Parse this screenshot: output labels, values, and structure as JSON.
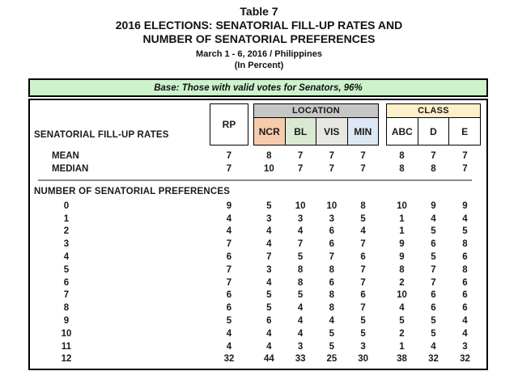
{
  "page": {
    "table_label": "Table 7",
    "title_line1": "2016 ELECTIONS: SENATORIAL FILL-UP RATES AND",
    "title_line2": "NUMBER OF SENATORIAL PREFERENCES",
    "subtitle": "March 1 - 6, 2016 / Philippines",
    "unit_note": "(In Percent)"
  },
  "banner": {
    "text": "Base: Those with valid votes for Senators, 96%"
  },
  "colors": {
    "banner_bg": "#CDF3CD",
    "location_header_bg": "#C6C6C6",
    "ncr_bg": "#F8CBAD",
    "bl_bg": "#DAE9D2",
    "vis_bg": "#E8E7E4",
    "min_bg": "#DCE9F5",
    "class_header_bg": "#FCEFC9",
    "divider": "#8A8A8A"
  },
  "table": {
    "section1_header": "SENATORIAL FILL-UP RATES",
    "rp_label": "RP",
    "groups": [
      {
        "label": "LOCATION",
        "columns": [
          "NCR",
          "BL",
          "VIS",
          "MIN"
        ]
      },
      {
        "label": "CLASS",
        "columns": [
          "ABC",
          "D",
          "E"
        ]
      }
    ],
    "fill_up_rows": [
      {
        "label": "MEAN",
        "values": [
          7,
          8,
          7,
          7,
          7,
          8,
          7,
          7
        ]
      },
      {
        "label": "MEDIAN",
        "values": [
          7,
          10,
          7,
          7,
          7,
          8,
          8,
          7
        ]
      }
    ],
    "section2_header": "NUMBER OF SENATORIAL PREFERENCES",
    "preference_rows": [
      {
        "label": "0",
        "values": [
          9,
          5,
          10,
          10,
          8,
          10,
          9,
          9
        ]
      },
      {
        "label": "1",
        "values": [
          4,
          3,
          3,
          3,
          5,
          1,
          4,
          4
        ]
      },
      {
        "label": "2",
        "values": [
          4,
          4,
          4,
          6,
          4,
          1,
          5,
          5
        ]
      },
      {
        "label": "3",
        "values": [
          7,
          4,
          7,
          6,
          7,
          9,
          6,
          8
        ]
      },
      {
        "label": "4",
        "values": [
          6,
          7,
          5,
          7,
          6,
          9,
          5,
          6
        ]
      },
      {
        "label": "5",
        "values": [
          7,
          3,
          8,
          8,
          7,
          8,
          7,
          8
        ]
      },
      {
        "label": "6",
        "values": [
          7,
          4,
          8,
          6,
          7,
          2,
          7,
          6
        ]
      },
      {
        "label": "7",
        "values": [
          6,
          5,
          5,
          8,
          6,
          10,
          6,
          6
        ]
      },
      {
        "label": "8",
        "values": [
          6,
          5,
          4,
          8,
          7,
          4,
          6,
          6
        ]
      },
      {
        "label": "9",
        "values": [
          5,
          6,
          4,
          4,
          5,
          5,
          5,
          4
        ]
      },
      {
        "label": "10",
        "values": [
          4,
          4,
          4,
          5,
          5,
          2,
          5,
          4
        ]
      },
      {
        "label": "11",
        "values": [
          4,
          4,
          3,
          5,
          3,
          1,
          4,
          3
        ]
      },
      {
        "label": "12",
        "values": [
          32,
          44,
          33,
          25,
          30,
          38,
          32,
          32
        ]
      }
    ]
  }
}
